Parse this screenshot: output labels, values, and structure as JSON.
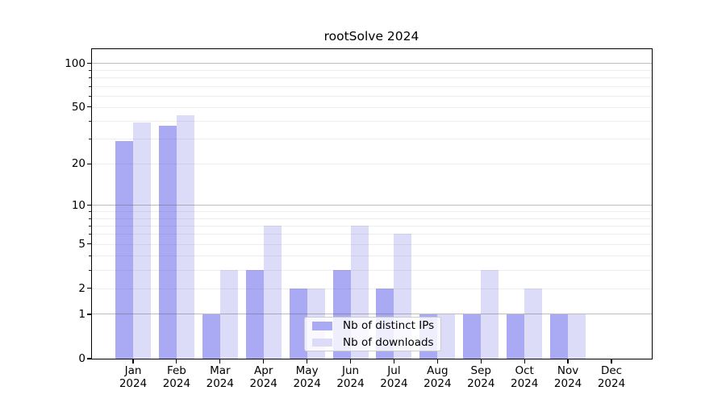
{
  "chart_data": {
    "type": "bar",
    "title": "rootSolve 2024",
    "year_label": "2024",
    "categories": [
      "Jan",
      "Feb",
      "Mar",
      "Apr",
      "May",
      "Jun",
      "Jul",
      "Aug",
      "Sep",
      "Oct",
      "Nov",
      "Dec"
    ],
    "series": [
      {
        "name": "Nb of distinct IPs",
        "color": "#a9a9f4",
        "values": [
          29,
          37,
          1,
          3,
          2,
          3,
          2,
          1,
          1,
          1,
          1,
          0
        ]
      },
      {
        "name": "Nb of downloads",
        "color": "#dcdcf8",
        "values": [
          39,
          44,
          3,
          7,
          2,
          7,
          6,
          1,
          3,
          2,
          1,
          0
        ]
      }
    ],
    "xlabel": "",
    "ylabel": "",
    "y_axis": {
      "scale": "log1p",
      "ylim": [
        0,
        125
      ],
      "labeled_ticks": [
        0,
        1,
        2,
        5,
        10,
        20,
        50,
        100
      ],
      "minor_ticks": [
        3,
        4,
        6,
        7,
        8,
        9,
        30,
        40,
        60,
        70,
        80,
        90
      ],
      "major_gridlines": [
        1,
        10,
        100
      ],
      "minor_gridlines": [
        2,
        3,
        4,
        5,
        6,
        7,
        8,
        9,
        20,
        30,
        40,
        50,
        60,
        70,
        80,
        90
      ],
      "major_grid_color": "#c3c3c3",
      "minor_grid_color": "#ececec"
    },
    "grid": true,
    "legend": {
      "position": "lower-center",
      "entries": [
        "Nb of distinct IPs",
        "Nb of downloads"
      ]
    }
  }
}
